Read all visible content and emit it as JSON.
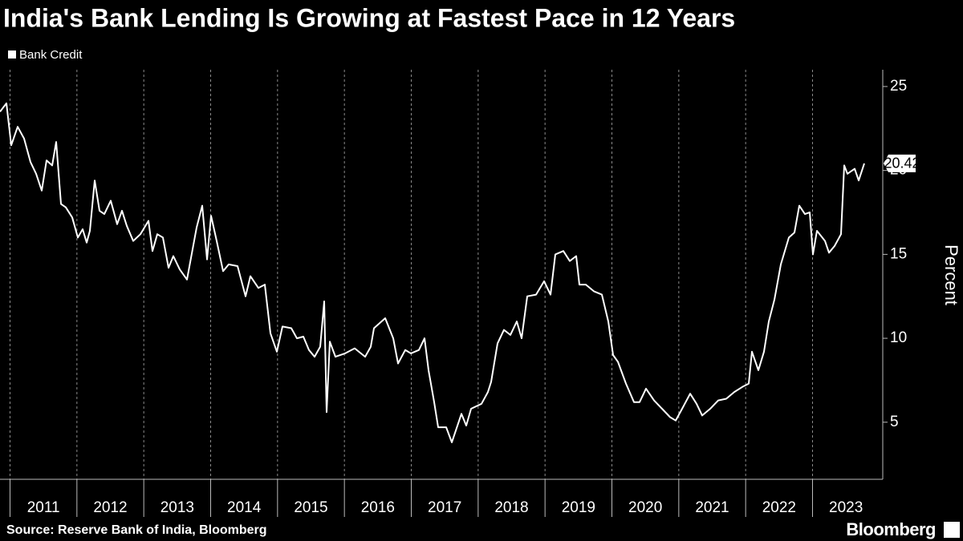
{
  "chart_data": {
    "type": "line",
    "title": "India's Bank Lending Is Growing at Fastest Pace in 12 Years",
    "y_label": "Percent",
    "source": "Source: Reserve Bank of India, Bloomberg",
    "brand": "Bloomberg",
    "legend": "top-left",
    "grid": true,
    "xlim": [
      2010.85,
      2024.05
    ],
    "ylim": [
      1.6,
      26
    ],
    "yticks": [
      5,
      10,
      15,
      20,
      25
    ],
    "xticks": [
      {
        "value": 2011,
        "label": "2011"
      },
      {
        "value": 2012,
        "label": "2012"
      },
      {
        "value": 2013,
        "label": "2013"
      },
      {
        "value": 2014,
        "label": "2014"
      },
      {
        "value": 2015,
        "label": "2015"
      },
      {
        "value": 2016,
        "label": "2016"
      },
      {
        "value": 2017,
        "label": "2017"
      },
      {
        "value": 2018,
        "label": "2018"
      },
      {
        "value": 2019,
        "label": "2019"
      },
      {
        "value": 2020,
        "label": "2020"
      },
      {
        "value": 2021,
        "label": "2021"
      },
      {
        "value": 2022,
        "label": "2022"
      },
      {
        "value": 2023,
        "label": "2023"
      }
    ],
    "x": [
      2010.85,
      2010.946,
      2011.018,
      2011.114,
      2011.21,
      2011.306,
      2011.39,
      2011.474,
      2011.546,
      2011.63,
      2011.69,
      2011.762,
      2011.834,
      2011.93,
      2012.014,
      2012.086,
      2012.146,
      2012.194,
      2012.266,
      2012.338,
      2012.41,
      2012.506,
      2012.602,
      2012.674,
      2012.746,
      2012.842,
      2012.95,
      2013.07,
      2013.13,
      2013.202,
      2013.286,
      2013.37,
      2013.442,
      2013.538,
      2013.646,
      2013.79,
      2013.874,
      2013.946,
      2014.006,
      2014.09,
      2014.186,
      2014.27,
      2014.402,
      2014.522,
      2014.594,
      2014.714,
      2014.81,
      2014.894,
      2014.99,
      2015.074,
      2015.206,
      2015.29,
      2015.386,
      2015.47,
      2015.554,
      2015.638,
      2015.698,
      2015.734,
      2015.782,
      2015.866,
      2016.01,
      2016.154,
      2016.31,
      2016.394,
      2016.442,
      2016.61,
      2016.73,
      2016.802,
      2016.91,
      2016.994,
      2017.114,
      2017.198,
      2017.258,
      2017.342,
      2017.402,
      2017.522,
      2017.606,
      2017.75,
      2017.822,
      2017.894,
      2018.05,
      2018.146,
      2018.194,
      2018.29,
      2018.386,
      2018.482,
      2018.578,
      2018.65,
      2018.734,
      2018.866,
      2018.986,
      2019.082,
      2019.154,
      2019.274,
      2019.37,
      2019.466,
      2019.514,
      2019.61,
      2019.73,
      2019.85,
      2019.946,
      2020.018,
      2020.09,
      2020.21,
      2020.33,
      2020.414,
      2020.51,
      2020.63,
      2020.75,
      2020.87,
      2020.954,
      2021.05,
      2021.17,
      2021.266,
      2021.35,
      2021.47,
      2021.59,
      2021.71,
      2021.83,
      2021.95,
      2022.046,
      2022.094,
      2022.19,
      2022.274,
      2022.346,
      2022.43,
      2022.526,
      2022.646,
      2022.73,
      2022.802,
      2022.886,
      2022.958,
      2023.006,
      2023.066,
      2023.186,
      2023.246,
      2023.33,
      2023.426,
      2023.474,
      2023.522,
      2023.63,
      2023.69,
      2023.774
    ],
    "series": [
      {
        "name": "Bank Credit",
        "color": "#ffffff",
        "values": [
          23.5,
          24.0,
          21.5,
          22.6,
          21.9,
          20.5,
          19.8,
          18.8,
          20.6,
          20.3,
          21.7,
          18.0,
          17.8,
          17.2,
          16.0,
          16.5,
          15.7,
          16.4,
          19.4,
          17.6,
          17.4,
          18.2,
          16.8,
          17.6,
          16.7,
          15.8,
          16.2,
          17.0,
          15.2,
          16.2,
          16.0,
          14.2,
          14.9,
          14.1,
          13.5,
          16.6,
          17.9,
          14.7,
          17.3,
          15.8,
          14.0,
          14.4,
          14.3,
          12.5,
          13.7,
          13.0,
          13.2,
          10.3,
          9.2,
          10.7,
          10.6,
          10.0,
          10.1,
          9.3,
          8.9,
          9.5,
          12.2,
          5.6,
          9.8,
          8.9,
          9.1,
          9.4,
          8.9,
          9.5,
          10.6,
          11.2,
          10.0,
          8.5,
          9.3,
          9.1,
          9.3,
          10.0,
          8.1,
          6.2,
          4.7,
          4.7,
          3.8,
          5.5,
          4.8,
          5.8,
          6.1,
          6.8,
          7.4,
          9.7,
          10.5,
          10.2,
          11.0,
          10.0,
          12.5,
          12.6,
          13.4,
          12.6,
          15.0,
          15.2,
          14.6,
          14.9,
          13.2,
          13.2,
          12.8,
          12.6,
          11.0,
          9.0,
          8.6,
          7.3,
          6.2,
          6.2,
          7.0,
          6.3,
          5.8,
          5.3,
          5.1,
          5.8,
          6.7,
          6.1,
          5.4,
          5.8,
          6.3,
          6.4,
          6.8,
          7.1,
          7.3,
          9.2,
          8.1,
          9.2,
          11.0,
          12.3,
          14.4,
          16.0,
          16.3,
          17.9,
          17.4,
          17.5,
          15.0,
          16.4,
          15.8,
          15.1,
          15.5,
          16.2,
          20.3,
          19.8,
          20.1,
          19.4,
          20.42
        ]
      }
    ]
  }
}
